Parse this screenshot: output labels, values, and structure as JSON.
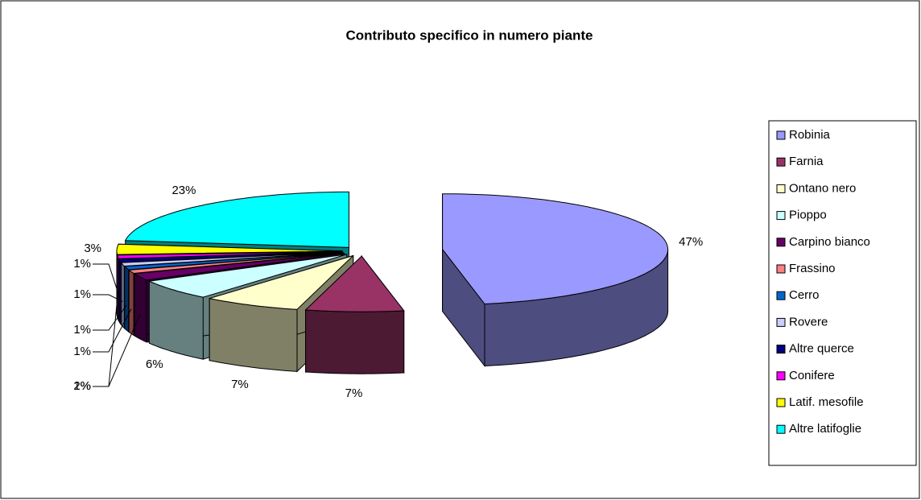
{
  "chart_data": {
    "type": "pie",
    "title": "Contributo specifico in numero piante",
    "categories": [
      "Robinia",
      "Farnia",
      "Ontano nero",
      "Pioppo",
      "Carpino bianco",
      "Frassino",
      "Cerro",
      "Rovere",
      "Altre querce",
      "Conifere",
      "Latif. mesofile",
      "Altre latifoglie"
    ],
    "values": [
      47,
      7,
      7,
      6,
      2,
      1,
      1,
      1,
      1,
      1,
      3,
      23
    ],
    "value_labels": [
      "47%",
      "7%",
      "7%",
      "6%",
      "2%",
      "1%",
      "1%",
      "1%",
      "1%",
      "1%",
      "3%",
      "23%"
    ],
    "colors": [
      "#9999ff",
      "#993366",
      "#ffffcc",
      "#ccffff",
      "#660066",
      "#ff8080",
      "#0066cc",
      "#ccccff",
      "#000080",
      "#ff00ff",
      "#ffff00",
      "#00ffff"
    ],
    "legend": "right"
  }
}
